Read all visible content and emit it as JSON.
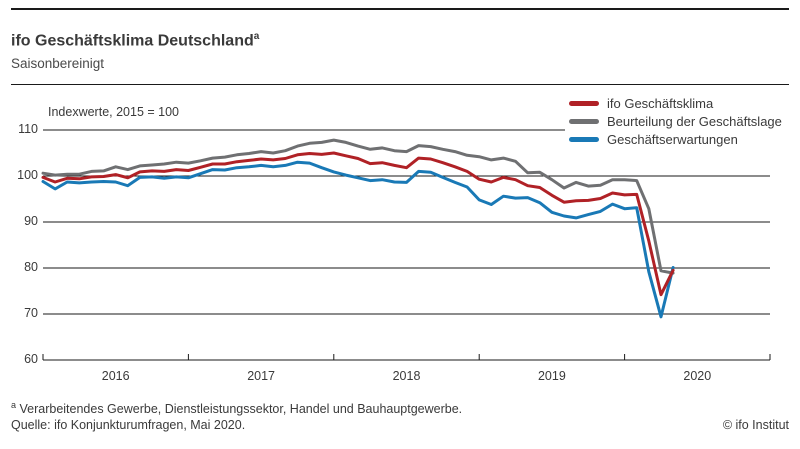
{
  "header": {
    "title": "ifo Geschäftsklima Deutschland",
    "title_footnote_marker": "a",
    "subtitle": "Saisonbereinigt"
  },
  "chart_data": {
    "type": "line",
    "title": "ifo Geschäftsklima Deutschland",
    "subtitle": "Saisonbereinigt",
    "unit_label": "Indexwerte, 2015 = 100",
    "freq": "monthly",
    "x_start": "2016-01",
    "x_end": "2020-05",
    "x_tick_years": [
      "2016",
      "2017",
      "2018",
      "2019",
      "2020"
    ],
    "y_ticks": [
      110,
      100,
      90,
      80,
      70,
      60
    ],
    "ylim": [
      60,
      113
    ],
    "grid": "horizontal",
    "legend_position": "top-right",
    "gridline_color": "#1a1a1a",
    "series": [
      {
        "name": "ifo Geschäftsklima",
        "color": "#b02126",
        "values": [
          99.7,
          98.7,
          99.5,
          99.4,
          99.8,
          99.9,
          100.3,
          99.6,
          100.9,
          101.1,
          101.0,
          101.4,
          101.2,
          101.9,
          102.6,
          102.6,
          103.1,
          103.4,
          103.7,
          103.5,
          103.8,
          104.6,
          104.9,
          104.7,
          105.0,
          104.4,
          103.8,
          102.7,
          102.9,
          102.3,
          101.8,
          103.9,
          103.7,
          102.9,
          102.0,
          101.0,
          99.3,
          98.7,
          99.7,
          99.2,
          97.9,
          97.5,
          95.8,
          94.3,
          94.6,
          94.7,
          95.1,
          96.3,
          95.9,
          96.0,
          85.9,
          74.2,
          79.5
        ]
      },
      {
        "name": "Beurteilung der Geschäftslage",
        "color": "#6f7072",
        "values": [
          100.6,
          100.2,
          100.4,
          100.4,
          101.0,
          101.1,
          102.0,
          101.4,
          102.2,
          102.4,
          102.6,
          103.0,
          102.8,
          103.3,
          103.9,
          104.1,
          104.6,
          104.9,
          105.3,
          105.0,
          105.5,
          106.5,
          107.1,
          107.3,
          107.8,
          107.3,
          106.5,
          105.8,
          106.1,
          105.5,
          105.3,
          106.6,
          106.4,
          105.8,
          105.3,
          104.5,
          104.2,
          103.5,
          103.9,
          103.2,
          100.7,
          100.8,
          99.2,
          97.4,
          98.6,
          97.8,
          98.0,
          99.2,
          99.2,
          99.0,
          92.9,
          79.4,
          78.9
        ]
      },
      {
        "name": "Geschäftserwartungen",
        "color": "#1979b6",
        "values": [
          98.8,
          97.2,
          98.7,
          98.5,
          98.7,
          98.8,
          98.7,
          97.9,
          99.7,
          99.8,
          99.5,
          99.8,
          99.6,
          100.5,
          101.4,
          101.3,
          101.8,
          102.0,
          102.3,
          102.0,
          102.3,
          103.0,
          102.8,
          101.8,
          100.9,
          100.2,
          99.6,
          99.0,
          99.2,
          98.7,
          98.6,
          101.0,
          100.8,
          99.7,
          98.6,
          97.6,
          94.8,
          93.8,
          95.6,
          95.2,
          95.3,
          94.2,
          92.1,
          91.3,
          90.9,
          91.6,
          92.3,
          93.9,
          92.9,
          93.1,
          79.2,
          69.4,
          80.1
        ]
      }
    ]
  },
  "footer": {
    "footnote_marker": "a",
    "footnote_text": "Verarbeitendes Gewerbe, Dienstleistungssektor, Handel und Bauhauptgewerbe.",
    "source": "Quelle: ifo Konjunkturumfragen, Mai 2020.",
    "copyright": "© ifo Institut"
  }
}
